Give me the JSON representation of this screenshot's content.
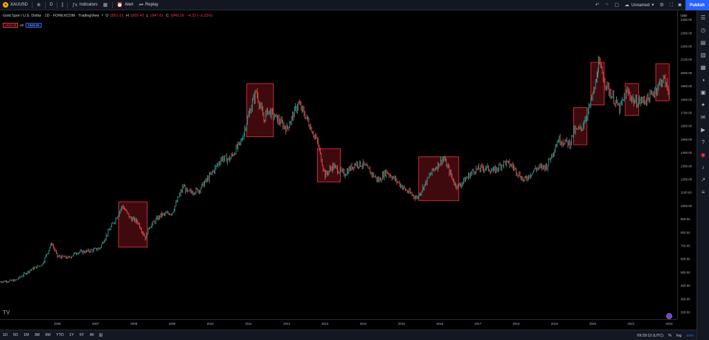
{
  "toolbar": {
    "symbol": "XAUUSD",
    "interval": "D",
    "indicators_label": "Indicators",
    "alert_label": "Alert",
    "replay_label": "Replay",
    "layout_name": "Unnamed",
    "publish_label": "Publish"
  },
  "legend": {
    "title": "Gold Spot / U.S. Dollar · 1D · FOREXCOM · TradingView",
    "open_label": "O",
    "open": "1851.61",
    "high_label": "H",
    "high": "1855.40",
    "low_label": "L",
    "low": "1847.61",
    "close_label": "C",
    "close": "1849.19",
    "change": "−4.22 (−0.23%)",
    "bid": "1849.09",
    "spread": "60",
    "ask": "1849.69"
  },
  "price_axis": {
    "labels": [
      "2400.00",
      "2300.00",
      "2200.00",
      "2100.00",
      "2000.00",
      "1900.00",
      "1800.00",
      "1700.00",
      "1600.00",
      "1500.00",
      "1400.00",
      "1300.00",
      "1200.00",
      "1100.00",
      "1000.00",
      "900.00",
      "800.00",
      "700.00",
      "600.00",
      "500.00",
      "400.00",
      "300.00",
      "200.00"
    ],
    "currency": "USD"
  },
  "time_axis": {
    "labels": [
      "2006",
      "2007",
      "2008",
      "2009",
      "2010",
      "2011",
      "2012",
      "2013",
      "2014",
      "2015",
      "2016",
      "2017",
      "2018",
      "2019",
      "2020",
      "2021",
      "2022"
    ]
  },
  "bottom": {
    "ranges": [
      "1D",
      "5D",
      "1M",
      "3M",
      "6M",
      "YTD",
      "1Y",
      "5Y",
      "All"
    ],
    "clock": "09:29:12 (UTC)",
    "percent_label": "%",
    "log_label": "log",
    "auto_label": "auto"
  },
  "colors": {
    "background": "#000000",
    "candle_up": "#26a69a",
    "candle_down": "#ef5350",
    "highlight_box": "#f23645",
    "accent": "#2962ff"
  },
  "chart_data": {
    "type": "line",
    "title": "Gold Spot / U.S. Dollar · 1D · FOREXCOM · TradingView",
    "xlabel": "",
    "ylabel": "",
    "x_range": [
      2005.0,
      2022.6
    ],
    "ylim": [
      200,
      2450
    ],
    "series": [
      {
        "x": [
          2005.0,
          2005.4,
          2005.8,
          2006.1,
          2006.35,
          2006.5,
          2006.8,
          2007.0,
          2007.3,
          2007.6,
          2007.8,
          2008.0,
          2008.2,
          2008.4,
          2008.6,
          2008.8,
          2008.9,
          2009.2,
          2009.5,
          2009.8,
          2009.9,
          2010.2,
          2010.5,
          2010.8,
          2011.0,
          2011.3,
          2011.6,
          2011.7,
          2011.9,
          2012.0,
          2012.3,
          2012.5,
          2012.8,
          2013.0,
          2013.3,
          2013.5,
          2013.7,
          2014.0,
          2014.3,
          2014.5,
          2014.9,
          2015.1,
          2015.4,
          2015.6,
          2015.9,
          2016.0,
          2016.3,
          2016.6,
          2016.9,
          2017.0,
          2017.4,
          2017.7,
          2017.9,
          2018.2,
          2018.4,
          2018.7,
          2019.0,
          2019.3,
          2019.6,
          2019.9,
          2020.0,
          2020.2,
          2020.4,
          2020.6,
          2020.65,
          2020.9,
          2021.2,
          2021.4,
          2021.6,
          2021.9,
          2022.0,
          2022.2,
          2022.35,
          2022.5
        ],
        "y": [
          430,
          440,
          520,
          560,
          720,
          620,
          610,
          650,
          660,
          680,
          790,
          890,
          1000,
          910,
          880,
          760,
          840,
          930,
          950,
          1150,
          1100,
          1120,
          1230,
          1360,
          1350,
          1480,
          1780,
          1860,
          1650,
          1720,
          1640,
          1580,
          1770,
          1670,
          1480,
          1230,
          1300,
          1240,
          1320,
          1310,
          1190,
          1260,
          1180,
          1120,
          1060,
          1110,
          1260,
          1360,
          1160,
          1150,
          1270,
          1290,
          1260,
          1330,
          1300,
          1190,
          1280,
          1300,
          1500,
          1470,
          1560,
          1580,
          1730,
          1940,
          2070,
          1880,
          1730,
          1860,
          1780,
          1800,
          1820,
          1900,
          1960,
          1850
        ]
      }
    ],
    "highlight_boxes": [
      {
        "x_start": 2008.1,
        "x_end": 2008.85,
        "y_low": 690,
        "y_high": 1030
      },
      {
        "x_start": 2011.45,
        "x_end": 2012.15,
        "y_low": 1520,
        "y_high": 1920
      },
      {
        "x_start": 2013.3,
        "x_end": 2013.9,
        "y_low": 1180,
        "y_high": 1430
      },
      {
        "x_start": 2015.95,
        "x_end": 2017.0,
        "y_low": 1040,
        "y_high": 1370
      },
      {
        "x_start": 2020.0,
        "x_end": 2020.35,
        "y_low": 1460,
        "y_high": 1740
      },
      {
        "x_start": 2020.45,
        "x_end": 2020.8,
        "y_low": 1760,
        "y_high": 2080
      },
      {
        "x_start": 2021.35,
        "x_end": 2021.7,
        "y_low": 1680,
        "y_high": 1920
      },
      {
        "x_start": 2022.15,
        "x_end": 2022.5,
        "y_low": 1790,
        "y_high": 2070
      }
    ]
  }
}
